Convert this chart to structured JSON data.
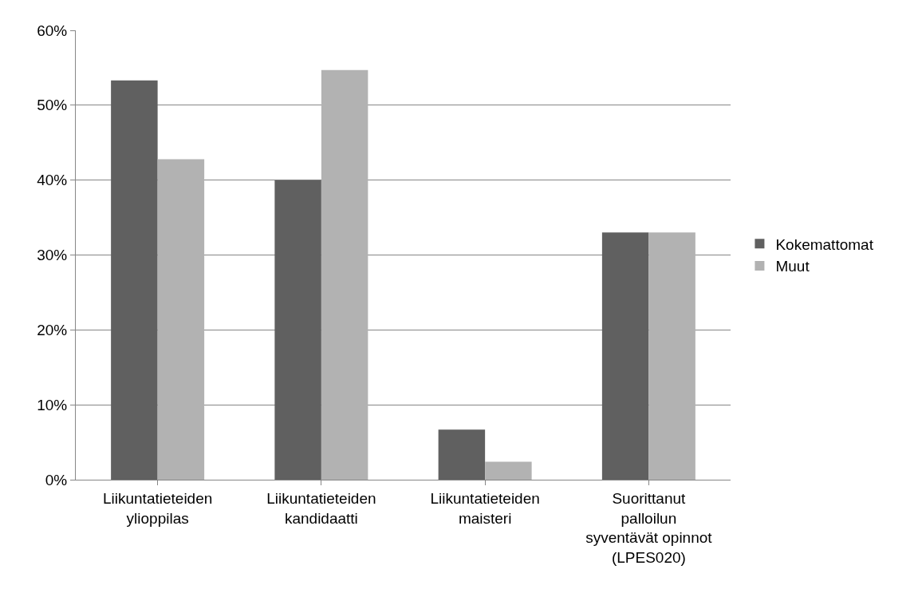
{
  "chart_data": {
    "type": "bar",
    "categories": [
      "Liikuntatieteiden ylioppilas",
      "Liikuntatieteiden kandidaatti",
      "Liikuntatieteiden maisteri",
      "Suorittanut palloilun syventävät opinnot (LPES020)"
    ],
    "series": [
      {
        "name": "Kokemattomat",
        "color": "#606060",
        "values": [
          53.3,
          40.0,
          6.7,
          33.0
        ]
      },
      {
        "name": "Muut",
        "color": "#b2b2b2",
        "values": [
          42.8,
          54.7,
          2.4,
          33.0
        ]
      }
    ],
    "ylim": [
      0,
      60
    ],
    "yticks": [
      {
        "value": 0,
        "label": "0%"
      },
      {
        "value": 10,
        "label": "10%"
      },
      {
        "value": 20,
        "label": "20%"
      },
      {
        "value": 30,
        "label": "30%"
      },
      {
        "value": 40,
        "label": "40%"
      },
      {
        "value": 50,
        "label": "50%"
      },
      {
        "value": 60,
        "label": "60%"
      }
    ],
    "grid": "y",
    "legend": "right"
  }
}
